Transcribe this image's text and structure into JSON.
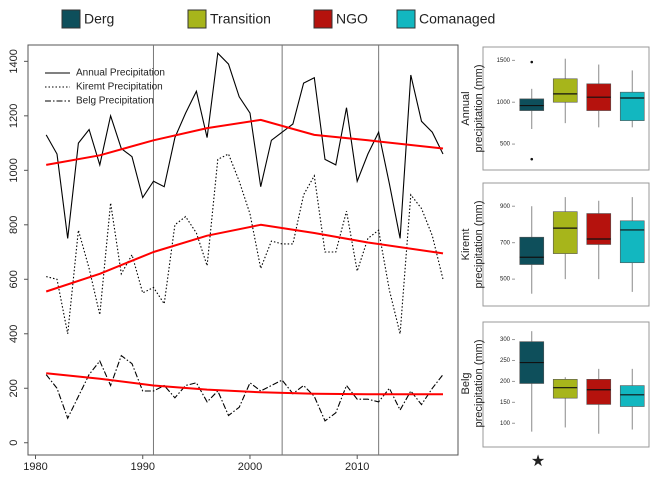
{
  "legend": [
    {
      "name": "Derg",
      "color": "#0e4f5b"
    },
    {
      "name": "Transition",
      "color": "#a7b51b"
    },
    {
      "name": "NGO",
      "color": "#b5120d"
    },
    {
      "name": "Comanaged",
      "color": "#12b7c0"
    }
  ],
  "chart_data": [
    {
      "type": "line",
      "x": [
        1981,
        1982,
        1983,
        1984,
        1985,
        1986,
        1987,
        1988,
        1989,
        1990,
        1991,
        1992,
        1993,
        1994,
        1995,
        1996,
        1997,
        1998,
        1999,
        2000,
        2001,
        2002,
        2003,
        2004,
        2005,
        2006,
        2007,
        2008,
        2009,
        2010,
        2011,
        2012,
        2013,
        2014,
        2015,
        2016,
        2017,
        2018
      ],
      "series": [
        {
          "name": "Annual Precipitation",
          "color": "#000000",
          "dash": "none",
          "values": [
            1130,
            1060,
            750,
            1100,
            1150,
            1020,
            1200,
            1080,
            1050,
            900,
            960,
            940,
            1120,
            1210,
            1290,
            1120,
            1430,
            1390,
            1270,
            1210,
            940,
            1110,
            1140,
            1170,
            1320,
            1340,
            1040,
            1020,
            1230,
            960,
            1060,
            1140,
            950,
            750,
            1350,
            1180,
            1140,
            1060
          ]
        },
        {
          "name": "Kiremt Precipitation",
          "color": "#000000",
          "dash": "1.5 2",
          "values": [
            610,
            600,
            400,
            780,
            640,
            470,
            880,
            620,
            690,
            550,
            570,
            510,
            800,
            830,
            770,
            650,
            1040,
            1060,
            960,
            840,
            640,
            740,
            730,
            730,
            910,
            980,
            700,
            700,
            850,
            630,
            750,
            780,
            560,
            400,
            910,
            860,
            760,
            600
          ]
        },
        {
          "name": "Belg Precipitation",
          "color": "#000000",
          "dash": "6 2 1.5 2",
          "values": [
            250,
            200,
            90,
            170,
            250,
            300,
            210,
            320,
            290,
            190,
            190,
            210,
            165,
            210,
            220,
            150,
            190,
            100,
            130,
            220,
            190,
            210,
            230,
            180,
            210,
            170,
            80,
            110,
            210,
            160,
            160,
            150,
            200,
            120,
            190,
            140,
            200,
            250
          ]
        }
      ],
      "trend_lines": [
        {
          "color": "#ff0000",
          "x": [
            1981,
            1986,
            1991,
            1996,
            2001,
            2006,
            2011,
            2018
          ],
          "values": [
            1020,
            1055,
            1110,
            1155,
            1185,
            1130,
            1110,
            1080
          ]
        },
        {
          "color": "#ff0000",
          "x": [
            1981,
            1986,
            1991,
            1996,
            2001,
            2006,
            2011,
            2018
          ],
          "values": [
            555,
            620,
            700,
            760,
            800,
            770,
            735,
            695
          ]
        },
        {
          "color": "#ff0000",
          "x": [
            1981,
            1986,
            1991,
            1996,
            2001,
            2006,
            2011,
            2018
          ],
          "values": [
            255,
            235,
            210,
            195,
            185,
            180,
            178,
            178
          ]
        }
      ],
      "vlines": [
        1991,
        2003,
        2012
      ],
      "xlim": [
        1979.3,
        2019.4
      ],
      "ylim": [
        -45,
        1460
      ],
      "xticks": [
        1980,
        1990,
        2000,
        2010
      ],
      "yticks": [
        0,
        200,
        400,
        600,
        800,
        1000,
        1200,
        1400
      ]
    },
    {
      "type": "box",
      "ylabel": [
        "Annual",
        "precipitation (mm)"
      ],
      "ylim": [
        250,
        1600
      ],
      "yticks": [
        500,
        1000,
        1500
      ],
      "boxes": [
        {
          "whislo": 680,
          "q1": 900,
          "med": 960,
          "q3": 1040,
          "whishi": 1160,
          "fliers": [
            1480,
            320
          ]
        },
        {
          "whislo": 750,
          "q1": 1000,
          "med": 1100,
          "q3": 1280,
          "whishi": 1520,
          "fliers": []
        },
        {
          "whislo": 700,
          "q1": 900,
          "med": 1060,
          "q3": 1220,
          "whishi": 1450,
          "fliers": []
        },
        {
          "whislo": 700,
          "q1": 780,
          "med": 1050,
          "q3": 1120,
          "whishi": 1380,
          "fliers": []
        }
      ]
    },
    {
      "type": "box",
      "ylabel": [
        "Kiremt",
        "precipitation (mm)"
      ],
      "ylim": [
        380,
        1000
      ],
      "yticks": [
        500,
        700,
        900
      ],
      "boxes": [
        {
          "whislo": 420,
          "q1": 580,
          "med": 620,
          "q3": 730,
          "whishi": 900,
          "fliers": []
        },
        {
          "whislo": 500,
          "q1": 640,
          "med": 780,
          "q3": 870,
          "whishi": 950,
          "fliers": []
        },
        {
          "whislo": 500,
          "q1": 690,
          "med": 720,
          "q3": 860,
          "whishi": 930,
          "fliers": []
        },
        {
          "whislo": 430,
          "q1": 590,
          "med": 770,
          "q3": 820,
          "whishi": 950,
          "fliers": []
        }
      ]
    },
    {
      "type": "box",
      "ylabel": [
        "Belg",
        "precipitation (mm)"
      ],
      "ylim": [
        60,
        330
      ],
      "yticks": [
        100,
        150,
        200,
        250,
        300
      ],
      "boxes": [
        {
          "whislo": 80,
          "q1": 195,
          "med": 245,
          "q3": 295,
          "whishi": 320,
          "fliers": []
        },
        {
          "whislo": 90,
          "q1": 160,
          "med": 185,
          "q3": 205,
          "whishi": 210,
          "fliers": []
        },
        {
          "whislo": 75,
          "q1": 145,
          "med": 180,
          "q3": 205,
          "whishi": 230,
          "fliers": []
        },
        {
          "whislo": 85,
          "q1": 140,
          "med": 168,
          "q3": 190,
          "whishi": 230,
          "fliers": []
        }
      ]
    }
  ]
}
